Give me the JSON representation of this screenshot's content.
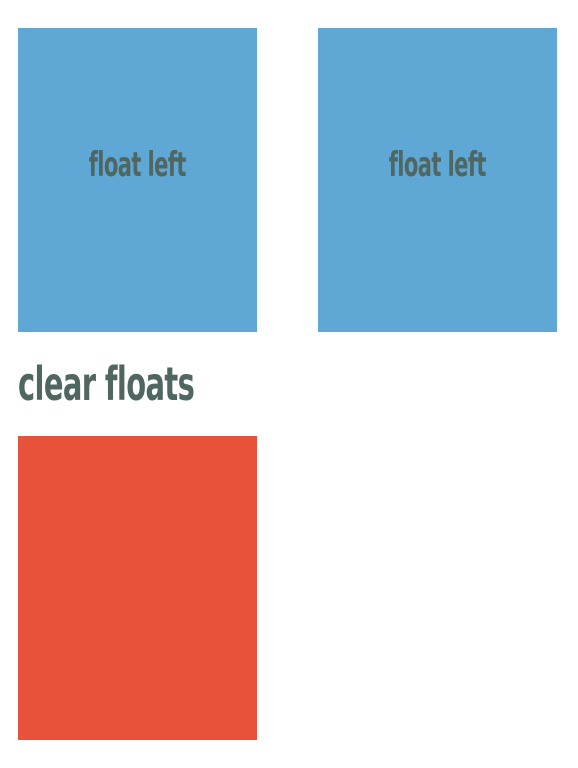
{
  "boxes": [
    {
      "label": "float left"
    },
    {
      "label": "float left"
    }
  ],
  "heading": "clear floats",
  "colors": {
    "float_box": "#5fa8d6",
    "clear_box": "#e8523b",
    "text": "#4f6661",
    "background": "#ffffff"
  }
}
